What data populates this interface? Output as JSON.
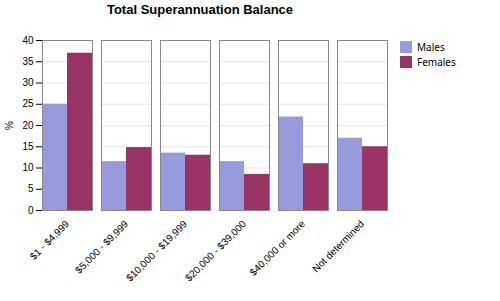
{
  "chart_data": {
    "type": "bar",
    "title": "Total Superannuation Balance",
    "categories": [
      "$1 - $4,999",
      "$5,000 - $9,999",
      "$10,000 - $19,999",
      "$20,000 - $39,000",
      "$40,000 or more",
      "Not determined"
    ],
    "series": [
      {
        "name": "Males",
        "color": "#9999dd",
        "values": [
          25,
          11.5,
          13.5,
          11.5,
          22,
          17
        ]
      },
      {
        "name": "Females",
        "color": "#993366",
        "values": [
          37,
          14.8,
          13,
          8.5,
          11,
          15
        ]
      }
    ],
    "ylabel": "%",
    "ylim": [
      0,
      40
    ],
    "yticks": [
      0,
      5,
      10,
      15,
      20,
      25,
      30,
      35,
      40
    ],
    "grid": true,
    "legend": "right"
  }
}
